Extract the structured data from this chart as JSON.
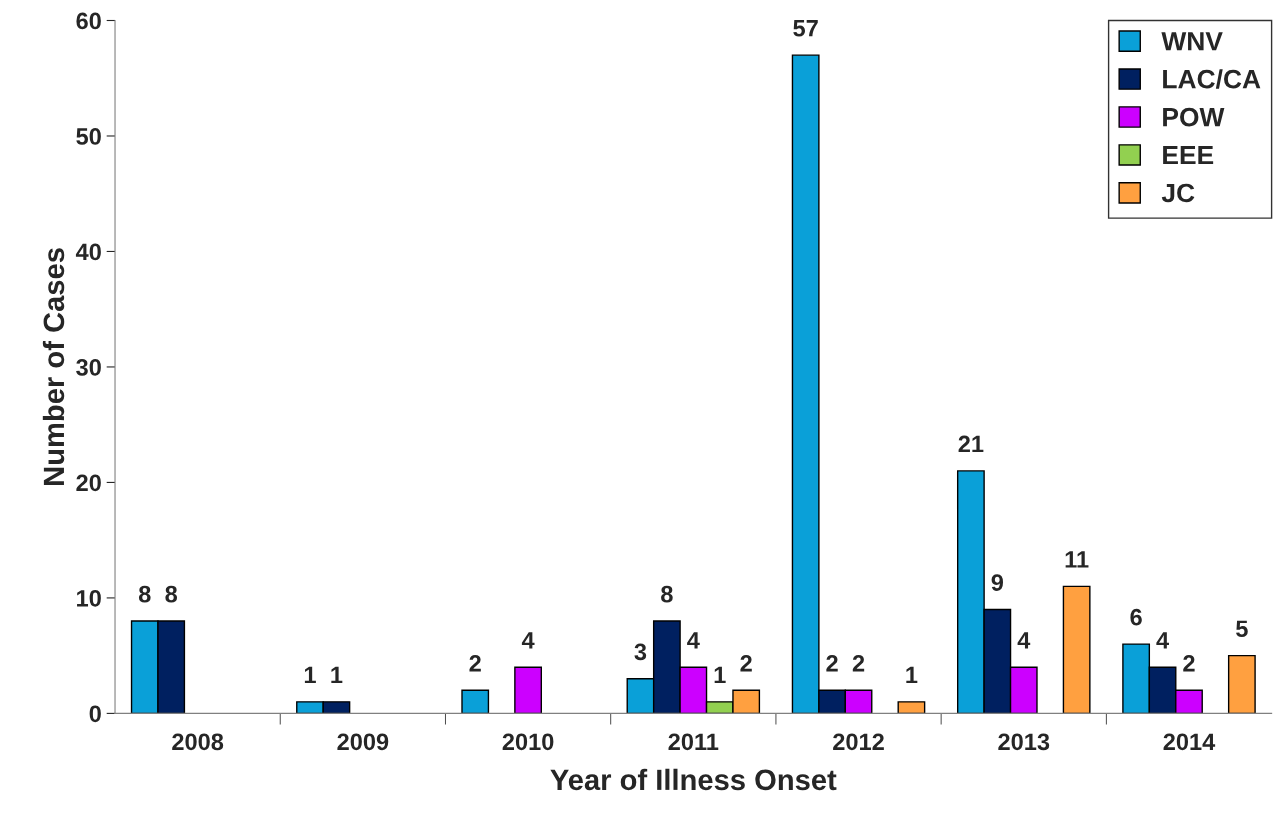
{
  "chart_data": {
    "type": "bar",
    "xlabel": "Year of Illness Onset",
    "ylabel": "Number of Cases",
    "categories": [
      "2008",
      "2009",
      "2010",
      "2011",
      "2012",
      "2013",
      "2014"
    ],
    "series": [
      {
        "name": "WNV",
        "color": "#0aa0d8",
        "values": [
          8,
          1,
          2,
          3,
          57,
          21,
          6
        ]
      },
      {
        "name": "LAC/CA",
        "color": "#002060",
        "values": [
          8,
          1,
          null,
          8,
          2,
          9,
          4
        ]
      },
      {
        "name": "POW",
        "color": "#cc00ff",
        "values": [
          null,
          null,
          4,
          4,
          2,
          4,
          2
        ]
      },
      {
        "name": "EEE",
        "color": "#92d050",
        "values": [
          null,
          null,
          null,
          1,
          null,
          null,
          null
        ]
      },
      {
        "name": "JC",
        "color": "#ffa040",
        "values": [
          null,
          null,
          null,
          2,
          1,
          11,
          5
        ]
      }
    ],
    "ylim": [
      0,
      60
    ],
    "yticks": [
      0,
      10,
      20,
      30,
      40,
      50,
      60
    ],
    "data_labels": true,
    "grid": false,
    "legend": "top right"
  }
}
